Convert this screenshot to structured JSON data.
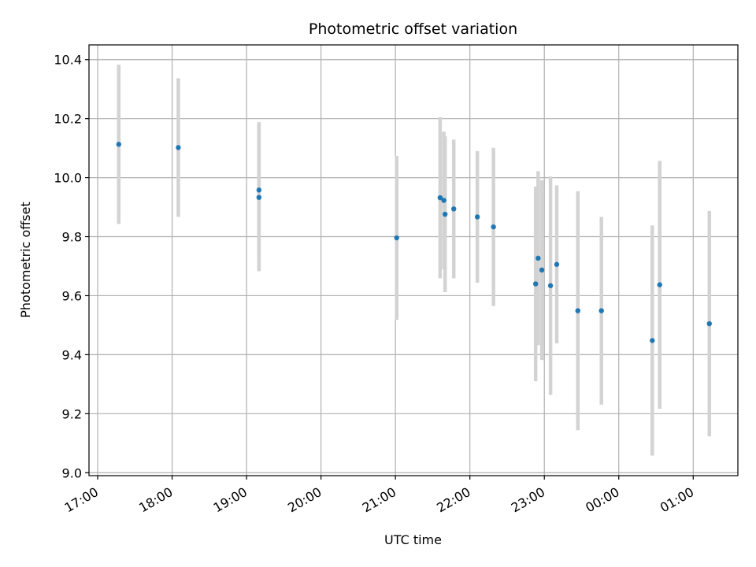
{
  "chart_data": {
    "type": "scatter",
    "title": "Photometric offset variation",
    "xlabel": "UTC time",
    "ylabel": "Photometric offset",
    "x_axis_kind": "time",
    "grid": true,
    "colors": {
      "points": "#1f77b4",
      "errorbars": "#d3d3d3",
      "grid": "#b0b0b0"
    },
    "xlim": [
      "16:53",
      "01:36"
    ],
    "ylim": [
      8.99,
      10.45
    ],
    "x_ticks": [
      "17:00",
      "18:00",
      "19:00",
      "20:00",
      "21:00",
      "22:00",
      "23:00",
      "00:00",
      "01:00"
    ],
    "y_ticks": [
      "9.0",
      "9.2",
      "9.4",
      "9.6",
      "9.8",
      "10.0",
      "10.2",
      "10.4"
    ],
    "points": [
      {
        "t": "17:17",
        "y": 10.113,
        "err": 0.27
      },
      {
        "t": "18:05",
        "y": 10.102,
        "err": 0.235
      },
      {
        "t": "19:10",
        "y": 9.958,
        "err": 0.23
      },
      {
        "t": "19:10",
        "y": 9.933,
        "err": 0.25
      },
      {
        "t": "21:01",
        "y": 9.796,
        "err": 0.278
      },
      {
        "t": "21:36",
        "y": 9.932,
        "err": 0.273
      },
      {
        "t": "21:39",
        "y": 9.923,
        "err": 0.233
      },
      {
        "t": "21:40",
        "y": 9.876,
        "err": 0.264
      },
      {
        "t": "21:47",
        "y": 9.894,
        "err": 0.235
      },
      {
        "t": "22:06",
        "y": 9.867,
        "err": 0.223
      },
      {
        "t": "22:19",
        "y": 9.833,
        "err": 0.268
      },
      {
        "t": "22:53",
        "y": 9.64,
        "err": 0.33
      },
      {
        "t": "22:55",
        "y": 9.727,
        "err": 0.295
      },
      {
        "t": "22:58",
        "y": 9.687,
        "err": 0.305
      },
      {
        "t": "23:05",
        "y": 9.634,
        "err": 0.37
      },
      {
        "t": "23:10",
        "y": 9.706,
        "err": 0.268
      },
      {
        "t": "23:27",
        "y": 9.549,
        "err": 0.405
      },
      {
        "t": "23:46",
        "y": 9.549,
        "err": 0.318
      },
      {
        "t": "00:27",
        "y": 9.448,
        "err": 0.39
      },
      {
        "t": "00:33",
        "y": 9.637,
        "err": 0.42
      },
      {
        "t": "01:13",
        "y": 9.505,
        "err": 0.382
      }
    ]
  }
}
